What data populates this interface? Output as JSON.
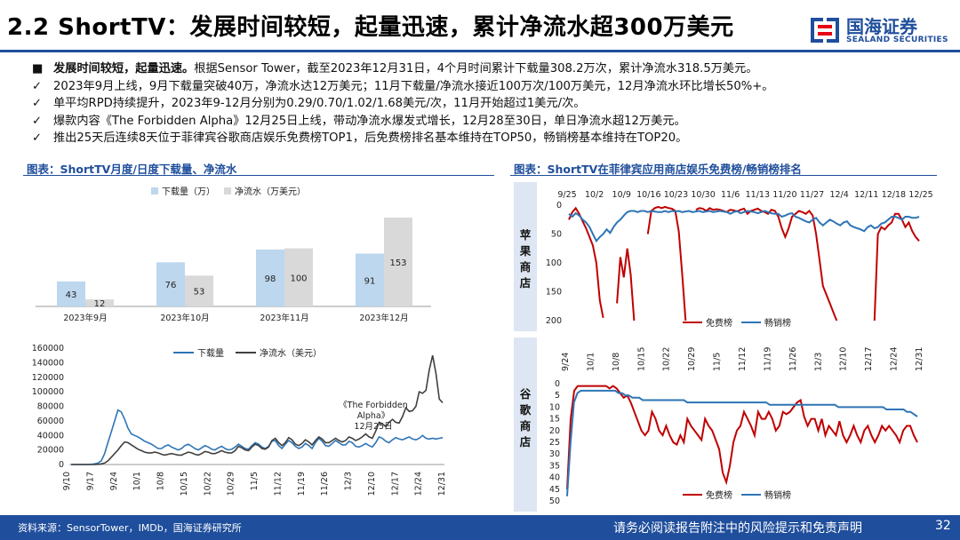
{
  "title": "2.2 ShortTV：发展时间较短，起量迅速，累计净流水超300万美元",
  "logo": {
    "cn": "国海证券",
    "en": "SEALAND SECURITIES"
  },
  "bullets": [
    {
      "marker": "■",
      "bold": "发展时间较短，起量迅速。",
      "text": "根据Sensor Tower，截至2023年12月31日，4个月时间累计下载量308.2万次，累计净流水318.5万美元。"
    },
    {
      "marker": "✓",
      "bold": "",
      "text": "2023年9月上线，9月下载量突破40万，净流水达12万美元；11月下载量/净流水接近100万次/100万美元，12月净流水环比增长50%+。"
    },
    {
      "marker": "✓",
      "bold": "",
      "text": "单平均RPD持续提升，2023年9-12月分别为0.29/0.70/1.02/1.68美元/次，11月开始超过1美元/次。"
    },
    {
      "marker": "✓",
      "bold": "",
      "text": "爆款内容《The Forbidden Alpha》12月25日上线，带动净流水爆发式增长，12月28至30日，单日净流水超12万美元。"
    },
    {
      "marker": "✓",
      "bold": "",
      "text": "推出25天后连续8天位于菲律宾谷歌商店娱乐免费榜TOP1，后免费榜排名基本维持在TOP50，畅销榜基本维持在TOP20。"
    }
  ],
  "left_panel_title": "图表：ShortTV月度/日度下载量、净流水",
  "right_panel_title": "图表：ShortTV在菲律宾应用商店娱乐免费榜/畅销榜排名",
  "chart_data": [
    {
      "type": "bar",
      "categories": [
        "2023年9月",
        "2023年10月",
        "2023年11月",
        "2023年12月"
      ],
      "series": [
        {
          "name": "下载量（万）",
          "values": [
            43,
            76,
            98,
            91
          ]
        },
        {
          "name": "净流水（万美元）",
          "values": [
            12,
            53,
            100,
            153
          ]
        }
      ],
      "colors": [
        "#bdd7ee",
        "#d9d9d9"
      ]
    },
    {
      "type": "line",
      "x_ticks": [
        "9/10",
        "9/17",
        "9/24",
        "10/1",
        "10/8",
        "10/15",
        "10/22",
        "10/29",
        "11/5",
        "11/12",
        "11/19",
        "11/26",
        "12/3",
        "12/10",
        "12/17",
        "12/24",
        "12/31"
      ],
      "y_ticks": [
        "160000",
        "140000",
        "120000",
        "100000",
        "80000",
        "60000",
        "40000",
        "20000",
        "0"
      ],
      "ylim": [
        0,
        160000
      ],
      "annotation": [
        "《The Forbidden",
        "Alpha》",
        "12月25日"
      ],
      "series": [
        {
          "name": "下载量",
          "color": "#2e75b6",
          "values": [
            0,
            0,
            0,
            0,
            0,
            100,
            300,
            800,
            2000,
            5000,
            15000,
            30000,
            45000,
            60000,
            75000,
            72000,
            62000,
            50000,
            42000,
            40000,
            38000,
            35000,
            32000,
            30000,
            28000,
            25000,
            22000,
            22000,
            25000,
            27000,
            24000,
            22000,
            20000,
            22000,
            26000,
            28000,
            25000,
            22000,
            20000,
            23000,
            26000,
            24000,
            21000,
            20000,
            23000,
            25000,
            22000,
            20000,
            21000,
            24000,
            28000,
            25000,
            22000,
            21000,
            26000,
            30000,
            28000,
            24000,
            22000,
            25000,
            32000,
            33000,
            26000,
            22000,
            28000,
            33000,
            30000,
            25000,
            22000,
            24000,
            29000,
            26000,
            22000,
            30000,
            36000,
            32000,
            26000,
            25000,
            29000,
            33000,
            30000,
            27000,
            27000,
            32000,
            30000,
            25000,
            24000,
            26000,
            29000,
            26000,
            24000,
            30000,
            38000,
            36000,
            32000,
            30000,
            34000,
            37000,
            35000,
            34000,
            36000,
            38000,
            35000,
            34000,
            36000,
            40000,
            36000,
            35000,
            36000,
            35000,
            36000,
            37000
          ]
        },
        {
          "name": "净流水（美元）",
          "color": "#404040",
          "values": [
            0,
            0,
            0,
            0,
            0,
            0,
            0,
            100,
            300,
            800,
            2000,
            5000,
            10000,
            15000,
            20000,
            26000,
            31000,
            30000,
            27000,
            24000,
            21000,
            19000,
            17000,
            16000,
            16000,
            17000,
            16000,
            14000,
            13000,
            14000,
            15000,
            14000,
            13000,
            13000,
            15000,
            17000,
            16000,
            14000,
            13000,
            15000,
            18000,
            17000,
            15000,
            15000,
            17000,
            19000,
            17000,
            16000,
            16000,
            19000,
            25000,
            23000,
            20000,
            19000,
            24000,
            28000,
            26000,
            22000,
            21000,
            24000,
            33000,
            36000,
            30000,
            26000,
            30000,
            37000,
            34000,
            28000,
            26000,
            29000,
            34000,
            31000,
            27000,
            33000,
            38000,
            35000,
            30000,
            30000,
            33000,
            36000,
            33000,
            31000,
            33000,
            38000,
            36000,
            33000,
            35000,
            38000,
            42000,
            38000,
            36000,
            46000,
            58000,
            56000,
            52000,
            58000,
            62000,
            58000,
            57000,
            66000,
            78000,
            73000,
            74000,
            80000,
            100000,
            98000,
            102000,
            130000,
            150000,
            125000,
            90000,
            85000
          ]
        }
      ]
    },
    {
      "type": "line",
      "x_ticks": [
        "9/25",
        "10/2",
        "10/9",
        "10/16",
        "10/23",
        "10/30",
        "11/6",
        "11/13",
        "11/20",
        "11/27",
        "12/4",
        "12/11",
        "12/18",
        "12/25"
      ],
      "y_ticks": [
        "0",
        "50",
        "100",
        "150",
        "200"
      ],
      "ylim": [
        0,
        200
      ],
      "y_inverted": true,
      "side_label": [
        "苹",
        "果",
        "商",
        "店"
      ],
      "series": [
        {
          "name": "免费榜",
          "color": "#c00000",
          "values": [
            25,
            12,
            5,
            15,
            28,
            40,
            55,
            70,
            100,
            165,
            195,
            null,
            null,
            null,
            170,
            90,
            125,
            75,
            120,
            200,
            null,
            null,
            null,
            50,
            10,
            5,
            3,
            5,
            3,
            5,
            6,
            10,
            45,
            120,
            200,
            null,
            null,
            8,
            5,
            6,
            10,
            5,
            8,
            7,
            8,
            10,
            12,
            8,
            9,
            11,
            8,
            6,
            15,
            10,
            8,
            6,
            10,
            12,
            15,
            8,
            10,
            20,
            40,
            55,
            40,
            20,
            15,
            10,
            12,
            15,
            10,
            18,
            50,
            95,
            140,
            155,
            170,
            185,
            200,
            null,
            null,
            null,
            null,
            null,
            null,
            null,
            null,
            null,
            null,
            210,
            50,
            38,
            42,
            35,
            30,
            15,
            15,
            25,
            38,
            30,
            45,
            55,
            62
          ]
        },
        {
          "name": "畅销榜",
          "color": "#2e75b6",
          "values": [
            15,
            20,
            14,
            18,
            25,
            30,
            38,
            50,
            62,
            55,
            50,
            42,
            48,
            38,
            30,
            25,
            18,
            12,
            10,
            10,
            12,
            10,
            10,
            12,
            10,
            11,
            12,
            12,
            10,
            12,
            10,
            11,
            10,
            12,
            11,
            10,
            12,
            11,
            10,
            12,
            11,
            10,
            12,
            11,
            10,
            11,
            12,
            15,
            12,
            10,
            14,
            12,
            10,
            11,
            12,
            14,
            12,
            10,
            12,
            14,
            15,
            15,
            20,
            18,
            15,
            14,
            20,
            22,
            25,
            28,
            30,
            25,
            22,
            30,
            35,
            30,
            25,
            28,
            32,
            35,
            30,
            28,
            35,
            38,
            40,
            42,
            45,
            38,
            35,
            40,
            38,
            32,
            30,
            25,
            20,
            20,
            22,
            25,
            20,
            20,
            22,
            22,
            20
          ]
        }
      ]
    },
    {
      "type": "line",
      "x_ticks": [
        "9/24",
        "10/1",
        "10/8",
        "10/15",
        "10/22",
        "10/29",
        "11/5",
        "11/12",
        "11/19",
        "11/26",
        "12/3",
        "12/10",
        "12/17",
        "12/24",
        "12/31"
      ],
      "y_ticks": [
        "0",
        "5",
        "10",
        "15",
        "20",
        "25",
        "30",
        "35",
        "40",
        "45",
        "50"
      ],
      "ylim": [
        0,
        50
      ],
      "y_inverted": true,
      "side_label": [
        "谷",
        "歌",
        "商",
        "店"
      ],
      "series": [
        {
          "name": "免费榜",
          "color": "#c00000",
          "values": [
            45,
            15,
            3,
            1,
            1,
            1,
            1,
            1,
            1,
            1,
            1,
            1,
            2,
            1,
            2,
            4,
            6,
            5,
            8,
            12,
            16,
            20,
            22,
            20,
            12,
            15,
            20,
            22,
            18,
            22,
            25,
            26,
            22,
            25,
            15,
            18,
            20,
            22,
            24,
            15,
            18,
            20,
            24,
            28,
            38,
            42,
            35,
            25,
            20,
            18,
            12,
            15,
            18,
            22,
            12,
            15,
            15,
            12,
            15,
            20,
            18,
            12,
            13,
            12,
            10,
            8,
            7,
            14,
            18,
            15,
            15,
            20,
            15,
            22,
            18,
            20,
            22,
            16,
            22,
            25,
            22,
            18,
            22,
            25,
            20,
            18,
            22,
            25,
            22,
            18,
            20,
            18,
            20,
            22,
            25,
            20,
            18,
            18,
            22,
            25
          ]
        },
        {
          "name": "畅销榜",
          "color": "#2e75b6",
          "values": [
            48,
            25,
            8,
            4,
            3,
            3,
            3,
            3,
            3,
            3,
            3,
            3,
            3,
            3,
            3,
            4,
            4,
            5,
            5,
            6,
            6,
            6,
            7,
            7,
            7,
            7,
            7,
            7,
            7,
            7,
            7,
            7,
            7,
            7,
            7,
            8,
            8,
            8,
            8,
            8,
            8,
            8,
            8,
            8,
            8,
            8,
            8,
            8,
            8,
            8,
            8,
            8,
            8,
            8,
            8,
            8,
            8,
            8,
            8,
            9,
            9,
            9,
            9,
            9,
            9,
            9,
            9,
            9,
            9,
            9,
            9,
            9,
            9,
            9,
            9,
            9,
            9,
            9,
            9,
            10,
            10,
            10,
            10,
            10,
            10,
            10,
            10,
            10,
            10,
            10,
            10,
            10,
            10,
            11,
            11,
            11,
            11,
            11,
            11,
            12,
            12,
            13,
            14
          ]
        }
      ]
    }
  ],
  "footer": {
    "source": "资料来源：SensorTower，IMDb，国海证券研究所",
    "disclaimer": "请务必阅读报告附注中的风险提示和免责声明",
    "page": "32"
  }
}
